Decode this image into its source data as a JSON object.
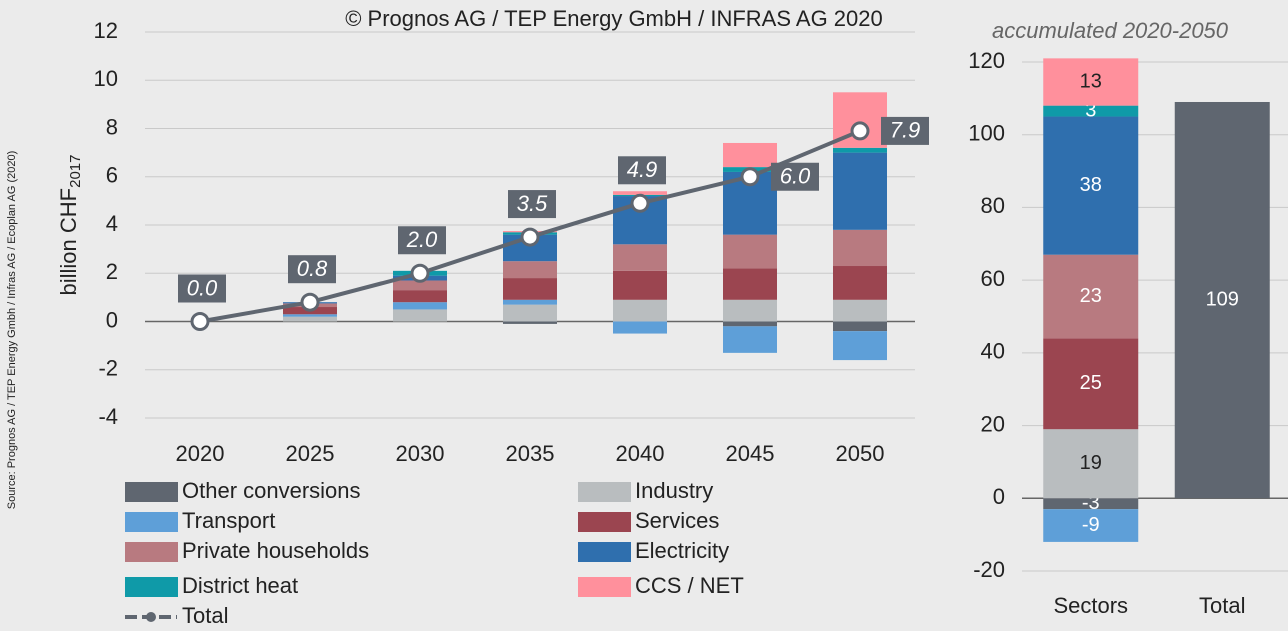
{
  "source": "Source: Prognos AG / TEP Energy Gmbh / Infras AG / Ecoplan AG (2020)",
  "chart_data": [
    {
      "type": "bar",
      "stacked": true,
      "copyright": "© Prognos AG / TEP Energy GmbH / INFRAS AG 2020",
      "ylabel": "billion CHF",
      "ylabel_sub": "2017",
      "categories": [
        "2020",
        "2025",
        "2030",
        "2035",
        "2040",
        "2045",
        "2050"
      ],
      "ylim": [
        -4,
        12
      ],
      "yticks": [
        -4,
        -2,
        0,
        2,
        4,
        6,
        8,
        10,
        12
      ],
      "grid": true,
      "legend": true,
      "series": [
        {
          "name": "Other conversions",
          "color": "#5f6670",
          "values": [
            0,
            0,
            0,
            -0.1,
            0,
            -0.2,
            -0.4
          ]
        },
        {
          "name": "Industry",
          "color": "#b9bdbf",
          "values": [
            0,
            0.2,
            0.5,
            0.7,
            0.9,
            0.9,
            0.9
          ]
        },
        {
          "name": "Transport",
          "color": "#5e9fd8",
          "values": [
            0,
            0.1,
            0.3,
            0.2,
            -0.5,
            -1.1,
            -1.2
          ]
        },
        {
          "name": "Services",
          "color": "#9b4550",
          "values": [
            0,
            0.3,
            0.5,
            0.9,
            1.2,
            1.3,
            1.4
          ]
        },
        {
          "name": "Private households",
          "color": "#b87a80",
          "values": [
            0,
            0.15,
            0.4,
            0.7,
            1.1,
            1.4,
            1.5
          ]
        },
        {
          "name": "Electricity",
          "color": "#2f6fae",
          "values": [
            0,
            0.05,
            0.2,
            1.1,
            2.0,
            2.6,
            3.2
          ]
        },
        {
          "name": "District heat",
          "color": "#0f9aa8",
          "values": [
            0,
            0,
            0.2,
            0.1,
            0.05,
            0.2,
            0.2
          ]
        },
        {
          "name": "CCS / NET",
          "color": "#ff909c",
          "values": [
            0,
            0,
            0,
            0.05,
            0.15,
            1.0,
            2.3
          ]
        },
        {
          "name": "Total",
          "type": "line",
          "color": "#5f6670",
          "values": [
            0,
            0.8,
            2.0,
            3.5,
            4.9,
            6.0,
            7.9
          ],
          "value_labels": [
            "0.0",
            "0.8",
            "2.0",
            "3.5",
            "4.9",
            "6.0",
            "7.9"
          ]
        }
      ]
    },
    {
      "type": "bar",
      "stacked": true,
      "subtitle": "accumulated 2020-2050",
      "data_labels": true,
      "categories": [
        "Sectors",
        "Total"
      ],
      "ylim": [
        -20,
        120
      ],
      "yticks": [
        -20,
        0,
        20,
        40,
        60,
        80,
        100,
        120
      ],
      "grid": true,
      "series": [
        {
          "color": "#5f6670",
          "values": [
            -3,
            null
          ]
        },
        {
          "color": "#b9bdbf",
          "values": [
            19,
            null
          ]
        },
        {
          "color": "#5e9fd8",
          "values": [
            -9,
            null
          ]
        },
        {
          "color": "#9b4550",
          "values": [
            25,
            null
          ]
        },
        {
          "color": "#b87a80",
          "values": [
            23,
            null
          ]
        },
        {
          "color": "#2f6fae",
          "values": [
            38,
            null
          ]
        },
        {
          "color": "#0f9aa8",
          "values": [
            3,
            null
          ]
        },
        {
          "color": "#ff909c",
          "values": [
            13,
            null
          ]
        },
        {
          "color": "#5f6670",
          "values": [
            null,
            109
          ]
        }
      ]
    }
  ]
}
